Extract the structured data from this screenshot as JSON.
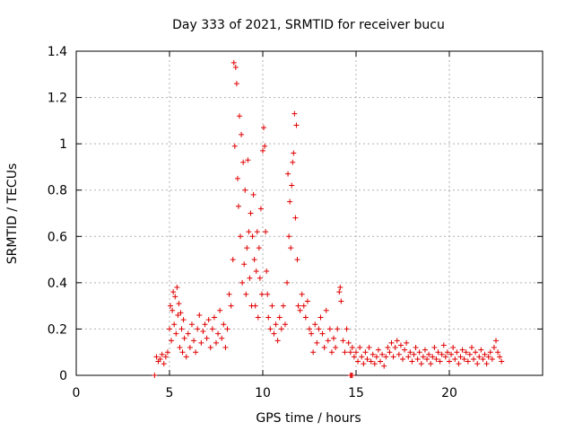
{
  "chart_data": {
    "type": "scatter",
    "title": "Day 333 of 2021, SRMTID for receiver bucu",
    "xlabel": "GPS time / hours",
    "ylabel": "SRMTID / TECUs",
    "xlim": [
      0,
      25
    ],
    "ylim": [
      0,
      1.4
    ],
    "x_ticks": [
      0,
      5,
      10,
      15,
      20
    ],
    "x_tick_labels": [
      "0",
      "5",
      "10",
      "15",
      "20"
    ],
    "y_ticks": [
      0,
      0.2,
      0.4,
      0.6,
      0.8,
      1.0,
      1.2,
      1.4
    ],
    "y_tick_labels": [
      "0",
      "0.2",
      "0.4",
      "0.6",
      "0.8",
      "1",
      "1.2",
      "1.4"
    ],
    "grid": true,
    "marker": "+",
    "series": [
      {
        "name": "SRMTID",
        "color": "#e00000",
        "points": [
          [
            4.2,
            0.0
          ],
          [
            14.7,
            0.0
          ],
          [
            14.75,
            0.0
          ],
          [
            14.8,
            0.0
          ],
          [
            4.3,
            0.08
          ],
          [
            4.4,
            0.06
          ],
          [
            4.5,
            0.07
          ],
          [
            4.6,
            0.09
          ],
          [
            4.7,
            0.05
          ],
          [
            4.8,
            0.08
          ],
          [
            4.9,
            0.1
          ],
          [
            5.0,
            0.2
          ],
          [
            5.05,
            0.3
          ],
          [
            5.1,
            0.15
          ],
          [
            5.15,
            0.28
          ],
          [
            5.2,
            0.36
          ],
          [
            5.25,
            0.22
          ],
          [
            5.3,
            0.34
          ],
          [
            5.35,
            0.18
          ],
          [
            5.4,
            0.38
          ],
          [
            5.45,
            0.26
          ],
          [
            5.5,
            0.31
          ],
          [
            5.55,
            0.12
          ],
          [
            5.6,
            0.27
          ],
          [
            5.65,
            0.2
          ],
          [
            5.7,
            0.1
          ],
          [
            5.75,
            0.24
          ],
          [
            5.8,
            0.16
          ],
          [
            5.9,
            0.08
          ],
          [
            6.0,
            0.18
          ],
          [
            6.1,
            0.12
          ],
          [
            6.2,
            0.22
          ],
          [
            6.3,
            0.15
          ],
          [
            6.4,
            0.1
          ],
          [
            6.5,
            0.2
          ],
          [
            6.6,
            0.26
          ],
          [
            6.7,
            0.14
          ],
          [
            6.8,
            0.19
          ],
          [
            6.9,
            0.22
          ],
          [
            7.0,
            0.16
          ],
          [
            7.1,
            0.24
          ],
          [
            7.2,
            0.12
          ],
          [
            7.3,
            0.2
          ],
          [
            7.4,
            0.25
          ],
          [
            7.5,
            0.14
          ],
          [
            7.6,
            0.18
          ],
          [
            7.7,
            0.28
          ],
          [
            7.8,
            0.16
          ],
          [
            7.9,
            0.22
          ],
          [
            8.0,
            0.12
          ],
          [
            8.1,
            0.2
          ],
          [
            8.2,
            0.35
          ],
          [
            8.3,
            0.3
          ],
          [
            8.4,
            0.5
          ],
          [
            8.45,
            1.35
          ],
          [
            8.5,
            0.99
          ],
          [
            8.55,
            1.33
          ],
          [
            8.6,
            1.26
          ],
          [
            8.65,
            0.85
          ],
          [
            8.7,
            0.73
          ],
          [
            8.75,
            1.12
          ],
          [
            8.8,
            0.6
          ],
          [
            8.85,
            1.04
          ],
          [
            8.9,
            0.4
          ],
          [
            8.95,
            0.92
          ],
          [
            9.0,
            0.48
          ],
          [
            9.05,
            0.8
          ],
          [
            9.1,
            0.35
          ],
          [
            9.15,
            0.55
          ],
          [
            9.2,
            0.93
          ],
          [
            9.25,
            0.62
          ],
          [
            9.3,
            0.42
          ],
          [
            9.35,
            0.7
          ],
          [
            9.4,
            0.3
          ],
          [
            9.45,
            0.6
          ],
          [
            9.5,
            0.78
          ],
          [
            9.55,
            0.5
          ],
          [
            9.6,
            0.3
          ],
          [
            9.65,
            0.45
          ],
          [
            9.7,
            0.62
          ],
          [
            9.75,
            0.25
          ],
          [
            9.8,
            0.55
          ],
          [
            9.85,
            0.42
          ],
          [
            9.9,
            0.72
          ],
          [
            9.95,
            0.35
          ],
          [
            10.0,
            0.97
          ],
          [
            10.05,
            1.07
          ],
          [
            10.1,
            0.99
          ],
          [
            10.15,
            0.62
          ],
          [
            10.2,
            0.45
          ],
          [
            10.25,
            0.35
          ],
          [
            10.3,
            0.25
          ],
          [
            10.4,
            0.2
          ],
          [
            10.5,
            0.3
          ],
          [
            10.6,
            0.18
          ],
          [
            10.7,
            0.22
          ],
          [
            10.8,
            0.15
          ],
          [
            10.9,
            0.25
          ],
          [
            11.0,
            0.2
          ],
          [
            11.1,
            0.3
          ],
          [
            11.2,
            0.22
          ],
          [
            11.3,
            0.4
          ],
          [
            11.35,
            0.87
          ],
          [
            11.4,
            0.6
          ],
          [
            11.45,
            0.75
          ],
          [
            11.5,
            0.55
          ],
          [
            11.55,
            0.82
          ],
          [
            11.6,
            0.92
          ],
          [
            11.65,
            0.96
          ],
          [
            11.7,
            1.13
          ],
          [
            11.75,
            0.68
          ],
          [
            11.8,
            1.08
          ],
          [
            11.85,
            0.5
          ],
          [
            11.9,
            0.3
          ],
          [
            12.0,
            0.28
          ],
          [
            12.1,
            0.35
          ],
          [
            12.2,
            0.3
          ],
          [
            12.3,
            0.25
          ],
          [
            12.4,
            0.32
          ],
          [
            12.5,
            0.2
          ],
          [
            12.6,
            0.18
          ],
          [
            12.7,
            0.1
          ],
          [
            12.8,
            0.22
          ],
          [
            12.9,
            0.14
          ],
          [
            13.0,
            0.2
          ],
          [
            13.1,
            0.25
          ],
          [
            13.2,
            0.18
          ],
          [
            13.3,
            0.12
          ],
          [
            13.4,
            0.28
          ],
          [
            13.5,
            0.15
          ],
          [
            13.6,
            0.2
          ],
          [
            13.7,
            0.1
          ],
          [
            13.8,
            0.16
          ],
          [
            13.9,
            0.12
          ],
          [
            14.0,
            0.2
          ],
          [
            14.1,
            0.36
          ],
          [
            14.15,
            0.38
          ],
          [
            14.2,
            0.32
          ],
          [
            14.3,
            0.15
          ],
          [
            14.4,
            0.1
          ],
          [
            14.5,
            0.2
          ],
          [
            14.6,
            0.14
          ],
          [
            14.7,
            0.1
          ],
          [
            14.8,
            0.12
          ],
          [
            14.9,
            0.08
          ],
          [
            15.0,
            0.1
          ],
          [
            15.1,
            0.06
          ],
          [
            15.2,
            0.12
          ],
          [
            15.3,
            0.08
          ],
          [
            15.4,
            0.05
          ],
          [
            15.5,
            0.1
          ],
          [
            15.6,
            0.07
          ],
          [
            15.7,
            0.12
          ],
          [
            15.8,
            0.06
          ],
          [
            15.9,
            0.09
          ],
          [
            16.0,
            0.05
          ],
          [
            16.1,
            0.08
          ],
          [
            16.2,
            0.11
          ],
          [
            16.3,
            0.06
          ],
          [
            16.4,
            0.09
          ],
          [
            16.5,
            0.04
          ],
          [
            16.6,
            0.08
          ],
          [
            16.7,
            0.12
          ],
          [
            16.8,
            0.1
          ],
          [
            16.9,
            0.14
          ],
          [
            17.0,
            0.08
          ],
          [
            17.1,
            0.12
          ],
          [
            17.2,
            0.15
          ],
          [
            17.3,
            0.09
          ],
          [
            17.4,
            0.13
          ],
          [
            17.5,
            0.07
          ],
          [
            17.6,
            0.11
          ],
          [
            17.7,
            0.14
          ],
          [
            17.8,
            0.08
          ],
          [
            17.9,
            0.1
          ],
          [
            18.0,
            0.06
          ],
          [
            18.1,
            0.09
          ],
          [
            18.2,
            0.12
          ],
          [
            18.3,
            0.07
          ],
          [
            18.4,
            0.1
          ],
          [
            18.5,
            0.05
          ],
          [
            18.6,
            0.08
          ],
          [
            18.7,
            0.11
          ],
          [
            18.8,
            0.07
          ],
          [
            18.9,
            0.09
          ],
          [
            19.0,
            0.05
          ],
          [
            19.1,
            0.08
          ],
          [
            19.2,
            0.12
          ],
          [
            19.3,
            0.07
          ],
          [
            19.4,
            0.1
          ],
          [
            19.5,
            0.06
          ],
          [
            19.6,
            0.09
          ],
          [
            19.7,
            0.13
          ],
          [
            19.8,
            0.08
          ],
          [
            19.9,
            0.1
          ],
          [
            20.0,
            0.06
          ],
          [
            20.1,
            0.09
          ],
          [
            20.2,
            0.12
          ],
          [
            20.3,
            0.07
          ],
          [
            20.4,
            0.1
          ],
          [
            20.5,
            0.05
          ],
          [
            20.6,
            0.08
          ],
          [
            20.7,
            0.11
          ],
          [
            20.8,
            0.07
          ],
          [
            20.9,
            0.1
          ],
          [
            21.0,
            0.06
          ],
          [
            21.1,
            0.09
          ],
          [
            21.2,
            0.12
          ],
          [
            21.3,
            0.07
          ],
          [
            21.4,
            0.1
          ],
          [
            21.5,
            0.05
          ],
          [
            21.6,
            0.08
          ],
          [
            21.7,
            0.11
          ],
          [
            21.8,
            0.07
          ],
          [
            21.9,
            0.09
          ],
          [
            22.0,
            0.05
          ],
          [
            22.1,
            0.08
          ],
          [
            22.2,
            0.1
          ],
          [
            22.3,
            0.07
          ],
          [
            22.4,
            0.12
          ],
          [
            22.5,
            0.15
          ],
          [
            22.6,
            0.1
          ],
          [
            22.7,
            0.08
          ],
          [
            22.8,
            0.06
          ]
        ]
      }
    ]
  }
}
